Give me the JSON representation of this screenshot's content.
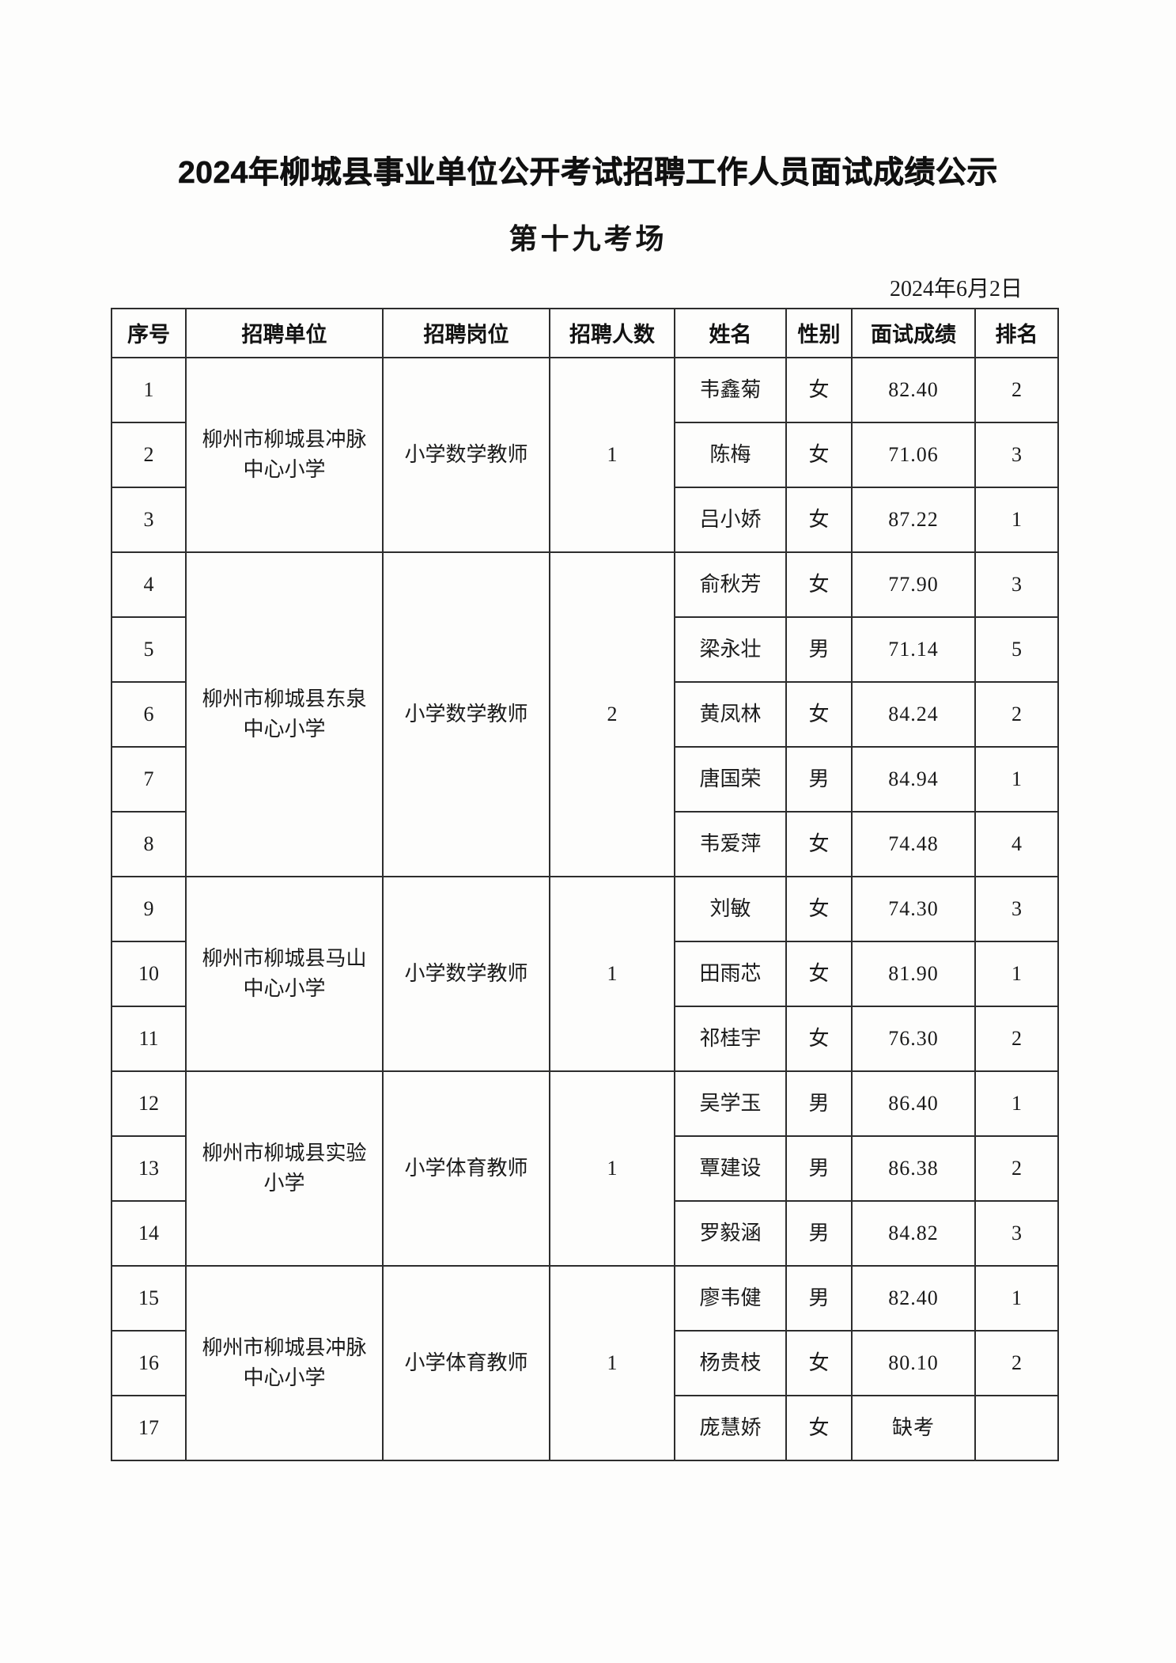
{
  "colors": {
    "paper": "#fdfdfc",
    "text": "#161616",
    "border": "#2d2d2d"
  },
  "page": {
    "title": "2024年柳城县事业单位公开考试招聘工作人员面试成绩公示",
    "subtitle": "第十九考场",
    "date": "2024年6月2日"
  },
  "table": {
    "headers": [
      "序号",
      "招聘单位",
      "招聘岗位",
      "招聘人数",
      "姓名",
      "性别",
      "面试成绩",
      "排名"
    ],
    "groups": [
      {
        "unit": "柳州市柳城县冲脉中心小学",
        "position": "小学数学教师",
        "recruit_count": "1",
        "rows": [
          {
            "no": "1",
            "name": "韦鑫菊",
            "gender": "女",
            "score": "82.40",
            "rank": "2"
          },
          {
            "no": "2",
            "name": "陈梅",
            "gender": "女",
            "score": "71.06",
            "rank": "3"
          },
          {
            "no": "3",
            "name": "吕小娇",
            "gender": "女",
            "score": "87.22",
            "rank": "1"
          }
        ]
      },
      {
        "unit": "柳州市柳城县东泉中心小学",
        "position": "小学数学教师",
        "recruit_count": "2",
        "rows": [
          {
            "no": "4",
            "name": "俞秋芳",
            "gender": "女",
            "score": "77.90",
            "rank": "3"
          },
          {
            "no": "5",
            "name": "梁永壮",
            "gender": "男",
            "score": "71.14",
            "rank": "5"
          },
          {
            "no": "6",
            "name": "黄凤林",
            "gender": "女",
            "score": "84.24",
            "rank": "2"
          },
          {
            "no": "7",
            "name": "唐国荣",
            "gender": "男",
            "score": "84.94",
            "rank": "1"
          },
          {
            "no": "8",
            "name": "韦爱萍",
            "gender": "女",
            "score": "74.48",
            "rank": "4"
          }
        ]
      },
      {
        "unit": "柳州市柳城县马山中心小学",
        "position": "小学数学教师",
        "recruit_count": "1",
        "rows": [
          {
            "no": "9",
            "name": "刘敏",
            "gender": "女",
            "score": "74.30",
            "rank": "3"
          },
          {
            "no": "10",
            "name": "田雨芯",
            "gender": "女",
            "score": "81.90",
            "rank": "1"
          },
          {
            "no": "11",
            "name": "祁桂宇",
            "gender": "女",
            "score": "76.30",
            "rank": "2"
          }
        ]
      },
      {
        "unit": "柳州市柳城县实验小学",
        "position": "小学体育教师",
        "recruit_count": "1",
        "rows": [
          {
            "no": "12",
            "name": "吴学玉",
            "gender": "男",
            "score": "86.40",
            "rank": "1"
          },
          {
            "no": "13",
            "name": "覃建设",
            "gender": "男",
            "score": "86.38",
            "rank": "2"
          },
          {
            "no": "14",
            "name": "罗毅涵",
            "gender": "男",
            "score": "84.82",
            "rank": "3"
          }
        ]
      },
      {
        "unit": "柳州市柳城县冲脉中心小学",
        "position": "小学体育教师",
        "recruit_count": "1",
        "rows": [
          {
            "no": "15",
            "name": "廖韦健",
            "gender": "男",
            "score": "82.40",
            "rank": "1"
          },
          {
            "no": "16",
            "name": "杨贵枝",
            "gender": "女",
            "score": "80.10",
            "rank": "2"
          },
          {
            "no": "17",
            "name": "庞慧娇",
            "gender": "女",
            "score": "缺考",
            "rank": ""
          }
        ]
      }
    ]
  }
}
